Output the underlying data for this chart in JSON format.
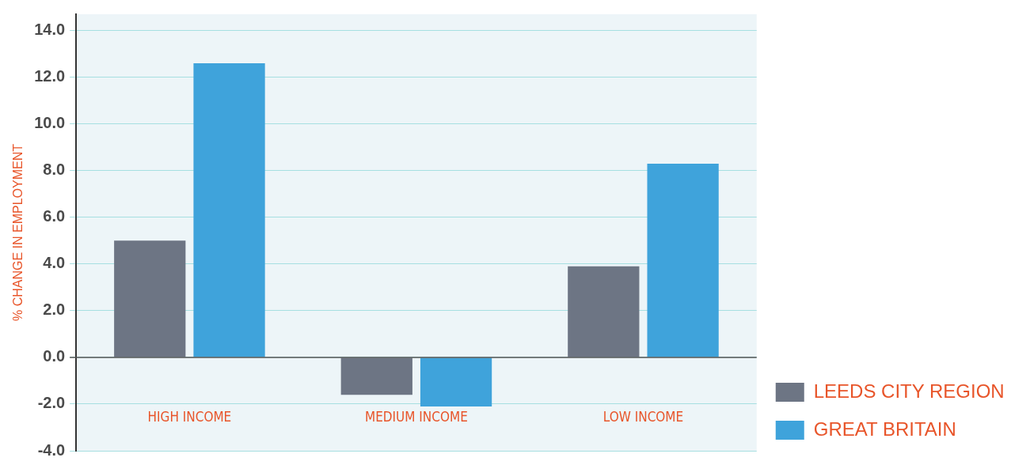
{
  "chart_data": {
    "type": "bar",
    "ylabel": "% CHANGE IN EMPLOYMENT",
    "categories": [
      "HIGH INCOME",
      "MEDIUM INCOME",
      "LOW INCOME"
    ],
    "series": [
      {
        "name": "LEEDS CITY REGION",
        "color": "#6d7584",
        "values": [
          5.0,
          -1.6,
          3.9
        ]
      },
      {
        "name": "GREAT BRITAIN",
        "color": "#3fa3db",
        "values": [
          12.6,
          -2.1,
          8.3
        ]
      }
    ],
    "ylim": [
      -4,
      14.7
    ],
    "yticks": [
      {
        "value": -4,
        "label": "-4.0"
      },
      {
        "value": -2,
        "label": "-2.0"
      },
      {
        "value": 0,
        "label": "0.0"
      },
      {
        "value": 2,
        "label": "2.0"
      },
      {
        "value": 4,
        "label": "4.0"
      },
      {
        "value": 6,
        "label": "6.0"
      },
      {
        "value": 8,
        "label": "8.0"
      },
      {
        "value": 10,
        "label": "10.0"
      },
      {
        "value": 12,
        "label": "12.0"
      },
      {
        "value": 14,
        "label": "14.0"
      }
    ],
    "grid": "y",
    "legend": "right"
  }
}
